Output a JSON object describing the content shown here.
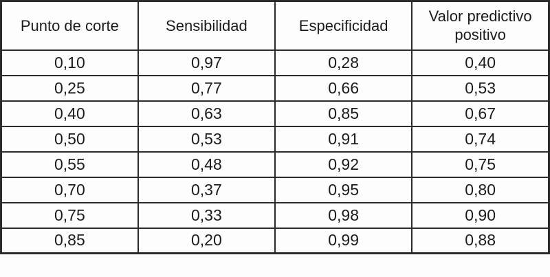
{
  "colors": {
    "background": "#fdfdfd",
    "text": "#1b1b1b",
    "border": "#2b2b2b"
  },
  "chart_data": {
    "type": "table",
    "columns": [
      "Punto de corte",
      "Sensibilidad",
      "Especificidad",
      "Valor predictivo positivo"
    ],
    "rows": [
      [
        "0,10",
        "0,97",
        "0,28",
        "0,40"
      ],
      [
        "0,25",
        "0,77",
        "0,66",
        "0,53"
      ],
      [
        "0,40",
        "0,63",
        "0,85",
        "0,67"
      ],
      [
        "0,50",
        "0,53",
        "0,91",
        "0,74"
      ],
      [
        "0,55",
        "0,48",
        "0,92",
        "0,75"
      ],
      [
        "0,70",
        "0,37",
        "0,95",
        "0,80"
      ],
      [
        "0,75",
        "0,33",
        "0,98",
        "0,90"
      ],
      [
        "0,85",
        "0,20",
        "0,99",
        "0,88"
      ]
    ]
  }
}
